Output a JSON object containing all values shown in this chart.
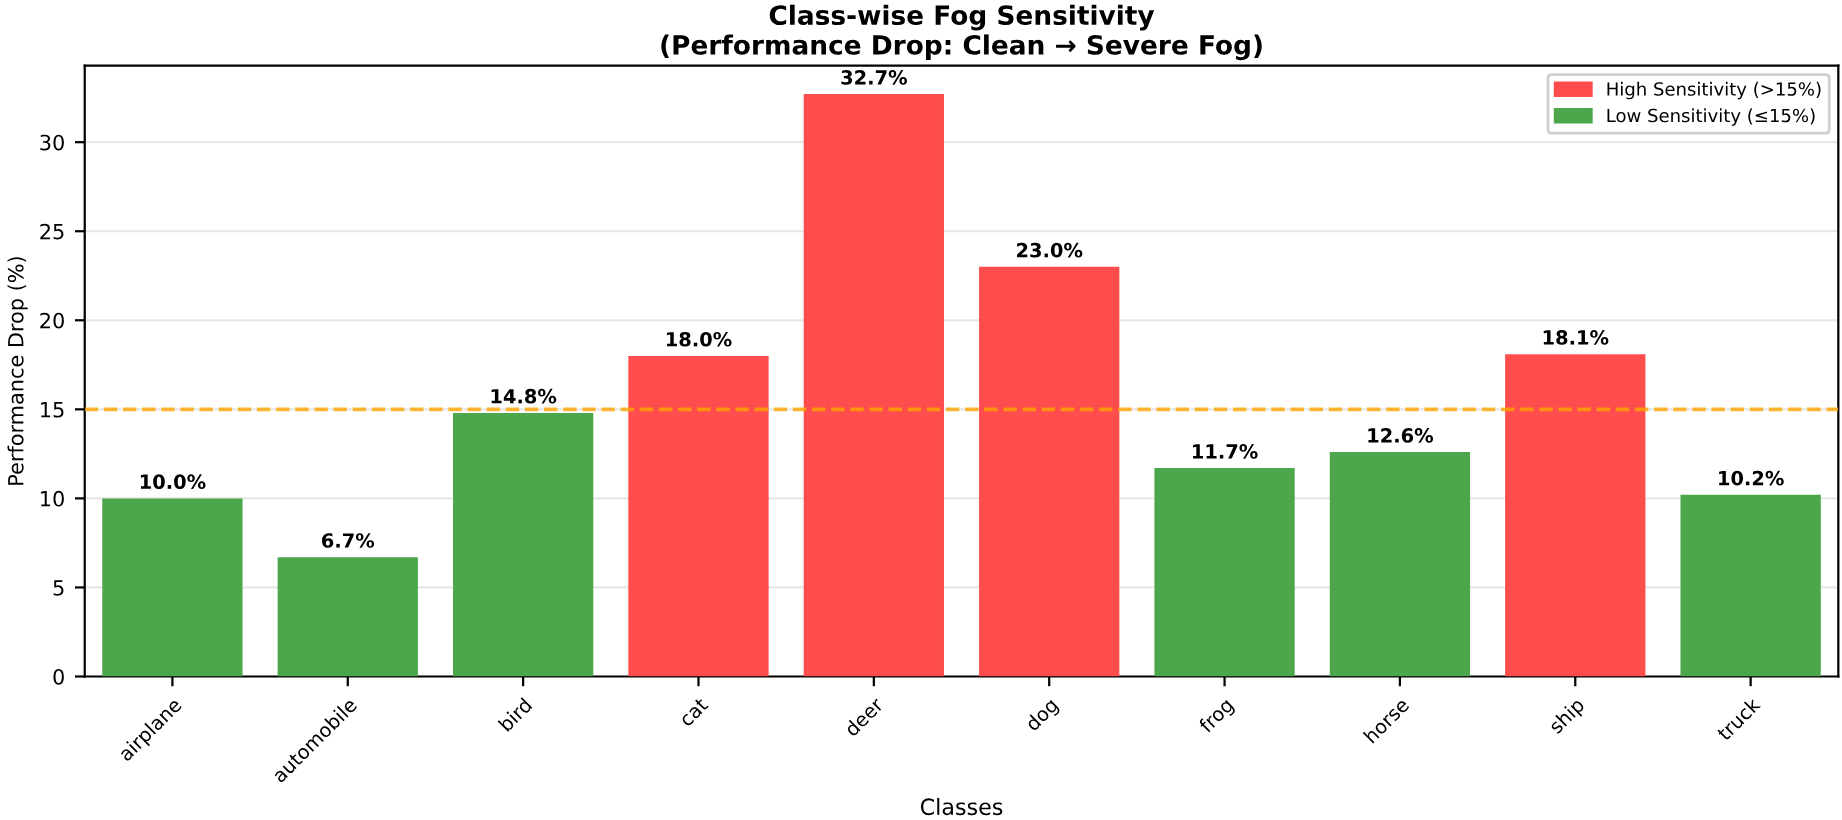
{
  "chart_data": {
    "type": "bar",
    "title": "Class-wise Fog Sensitivity\n(Performance Drop: Clean → Severe Fog)",
    "xlabel": "Classes",
    "ylabel": "Performance Drop (%)",
    "categories": [
      "airplane",
      "automobile",
      "bird",
      "cat",
      "deer",
      "dog",
      "frog",
      "horse",
      "ship",
      "truck"
    ],
    "series": [
      {
        "name": "High Sensitivity (>15%)",
        "color": "#ff4d4d",
        "values": [
          null,
          null,
          null,
          18.0,
          32.7,
          23.0,
          null,
          null,
          18.1,
          null
        ],
        "value_labels": [
          null,
          null,
          null,
          "18.0%",
          "32.7%",
          "23.0%",
          null,
          null,
          "18.1%",
          null
        ]
      },
      {
        "name": "Low Sensitivity (≤15%)",
        "color": "#4ca64c",
        "values": [
          10.0,
          6.7,
          14.8,
          null,
          null,
          null,
          11.7,
          12.6,
          null,
          10.2
        ],
        "value_labels": [
          "10.0%",
          "6.7%",
          "14.8%",
          null,
          null,
          null,
          "11.7%",
          "12.6%",
          null,
          "10.2%"
        ]
      }
    ],
    "ylim": [
      0,
      34.3
    ],
    "yticks": [
      0,
      5,
      10,
      15,
      20,
      25,
      30
    ],
    "grid": "y",
    "legend": "top right",
    "ref_lines": [
      {
        "axis": "y",
        "value": 15,
        "color": "#ffa500",
        "line_style": "dashed"
      }
    ]
  }
}
